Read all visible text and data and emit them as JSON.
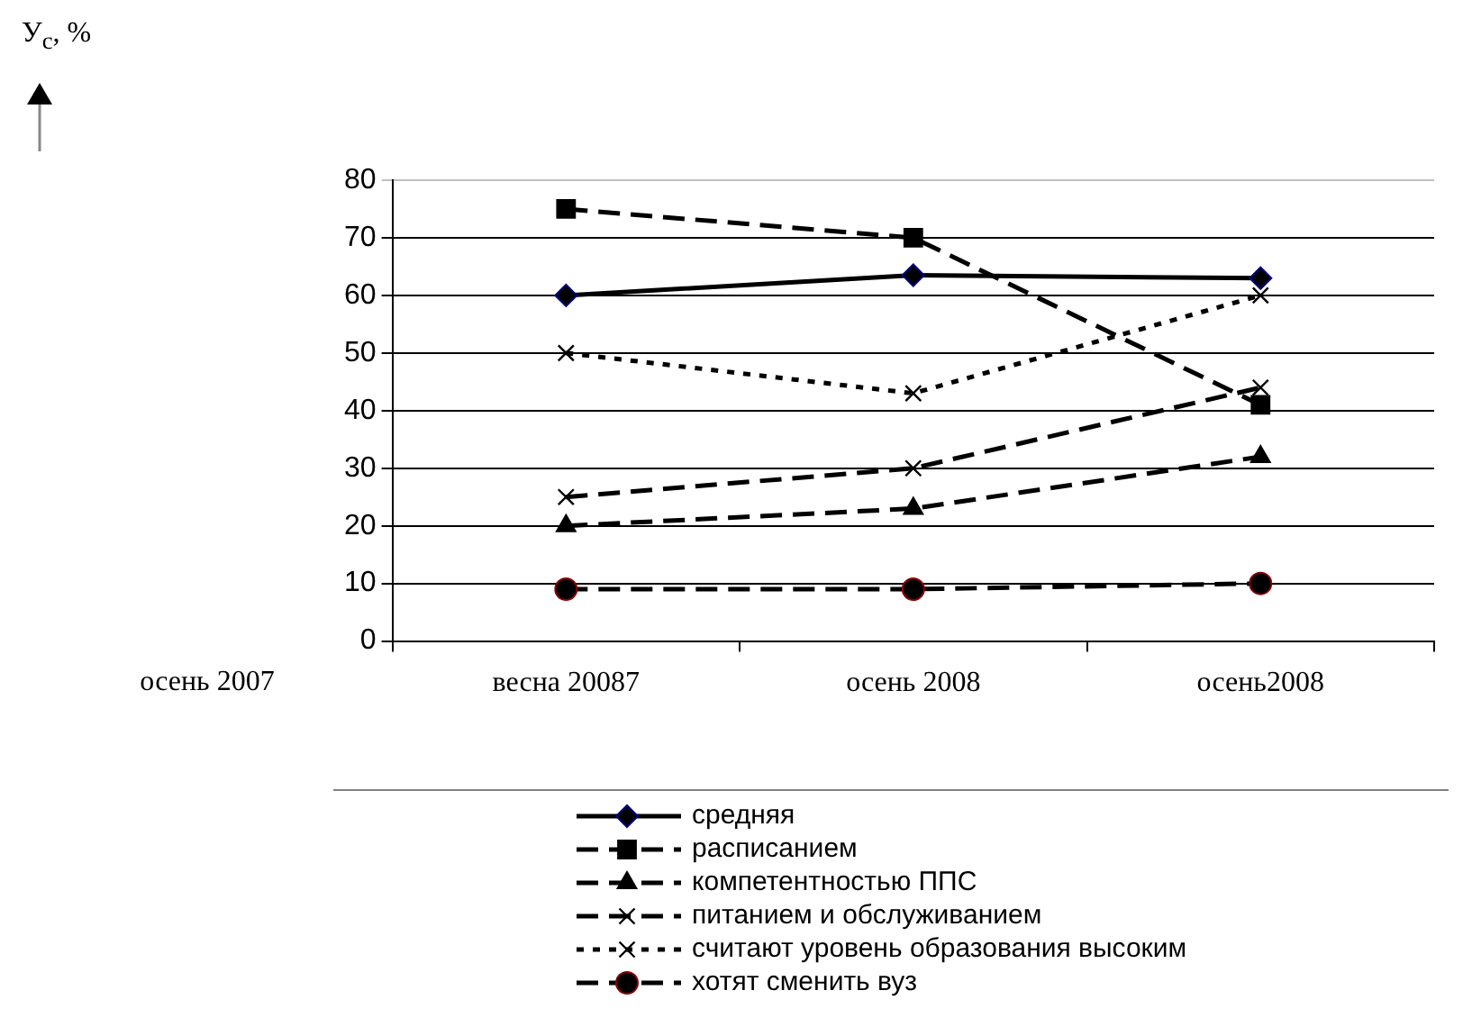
{
  "chart_data": {
    "type": "line",
    "categories": [
      "весна 20087",
      "осень 2008",
      "осень2008"
    ],
    "series": [
      {
        "name": "средняя",
        "color": "#000000",
        "values": [
          60,
          63.5,
          63
        ],
        "marker": "diamond",
        "line_style": "solid"
      },
      {
        "name": "расписанием",
        "color": "#000000",
        "values": [
          75,
          70,
          41
        ],
        "marker": "square",
        "line_style": "dashed"
      },
      {
        "name": "компетентностью ППС",
        "color": "#000000",
        "values": [
          20,
          23,
          32
        ],
        "marker": "triangle",
        "line_style": "dashed"
      },
      {
        "name": "питанием и обслуживанием",
        "color": "#000000",
        "values": [
          25,
          30,
          44
        ],
        "marker": "cross",
        "line_style": "dashed"
      },
      {
        "name": "считают уровень образования высоким",
        "color": "#000000",
        "values": [
          50,
          43,
          60
        ],
        "marker": "cross",
        "line_style": "dotted"
      },
      {
        "name": "хотят сменить вуз",
        "color": "#000000",
        "values": [
          9,
          9,
          10
        ],
        "marker": "circle",
        "line_style": "dashed"
      }
    ],
    "ylim": [
      0,
      80
    ],
    "yticks": [
      0,
      10,
      20,
      30,
      40,
      50,
      60,
      70,
      80
    ],
    "grid": "y",
    "legend": "bottom",
    "annotations": [
      "У$_{с}$, %",
      "осень 2007"
    ]
  }
}
